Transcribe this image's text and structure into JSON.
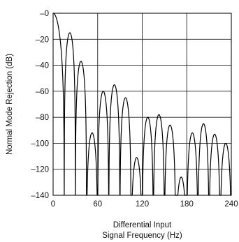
{
  "chart_data": {
    "type": "line",
    "title": "",
    "xlabel_line1": "Differential Input",
    "xlabel_line2": "Signal Frequency (Hz)",
    "ylabel": "Normal Mode Rejection (dB)",
    "xlim": [
      0,
      240
    ],
    "ylim": [
      -140,
      0
    ],
    "x_ticks": [
      0,
      60,
      120,
      180,
      240
    ],
    "x_tick_labels": [
      "0",
      "60",
      "120",
      "180",
      "240"
    ],
    "y_ticks": [
      0,
      -20,
      -40,
      -60,
      -80,
      -100,
      -120,
      -140
    ],
    "y_tick_labels": [
      "–0",
      "–20",
      "–40",
      "–60",
      "–80",
      "–100",
      "–120",
      "–140"
    ],
    "grid": true,
    "series": [
      {
        "function": "sinc3",
        "notch_spacing_hz": 15,
        "lobe_peaks": [
          {
            "x": 0,
            "y": 0
          },
          {
            "x": 11.5,
            "y": -4
          },
          {
            "x": 26,
            "y": -15
          },
          {
            "x": 41,
            "y": -37
          },
          {
            "x": 56.3,
            "y": -92
          },
          {
            "x": 71,
            "y": -60
          },
          {
            "x": 86,
            "y": -55
          },
          {
            "x": 101,
            "y": -65
          },
          {
            "x": 116,
            "y": -111
          },
          {
            "x": 131,
            "y": -80
          },
          {
            "x": 146,
            "y": -78
          },
          {
            "x": 161,
            "y": -86
          },
          {
            "x": 176,
            "y": -126
          },
          {
            "x": 191,
            "y": -92
          },
          {
            "x": 206,
            "y": -85
          },
          {
            "x": 221,
            "y": -93
          },
          {
            "x": 236,
            "y": -100
          }
        ],
        "notches_hz": [
          15,
          30,
          45,
          60,
          75,
          90,
          105,
          120,
          135,
          150,
          165,
          180,
          195,
          210,
          225,
          240
        ]
      }
    ]
  }
}
